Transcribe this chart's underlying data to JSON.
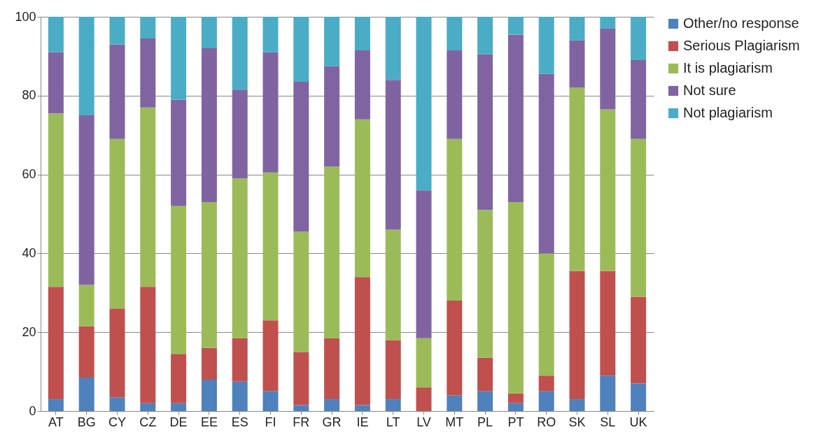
{
  "chart_data": {
    "type": "bar",
    "stacked": true,
    "categories": [
      "AT",
      "BG",
      "CY",
      "CZ",
      "DE",
      "EE",
      "ES",
      "FI",
      "FR",
      "GR",
      "IE",
      "LT",
      "LV",
      "MT",
      "PL",
      "PT",
      "RO",
      "SK",
      "SL",
      "UK"
    ],
    "series": [
      {
        "name": "Other/no response",
        "color": "#4f81bd",
        "values": [
          3,
          8.5,
          3.5,
          2,
          2,
          8,
          7.5,
          5,
          1.5,
          3,
          1.5,
          3,
          0,
          4,
          5,
          2,
          5,
          3,
          9,
          7
        ]
      },
      {
        "name": "Serious Plagiarism",
        "color": "#c0504d",
        "values": [
          28.5,
          13,
          22.5,
          29.5,
          12.5,
          8,
          11,
          18,
          13.5,
          15.5,
          32.5,
          15,
          6,
          24,
          8.5,
          2.5,
          4,
          32.5,
          26.5,
          22
        ]
      },
      {
        "name": "It is plagiarism",
        "color": "#9bbb59",
        "values": [
          44,
          10.5,
          43,
          45.5,
          37.5,
          37,
          40.5,
          37.5,
          30.5,
          43.5,
          40,
          28,
          12.5,
          41,
          37.5,
          48.5,
          31,
          46.5,
          41,
          40
        ]
      },
      {
        "name": "Not sure",
        "color": "#8064a2",
        "values": [
          15.5,
          43,
          24,
          17.5,
          27,
          39,
          22.5,
          30.5,
          38,
          25.5,
          17.5,
          38,
          37.5,
          22.5,
          39.5,
          42.5,
          45.5,
          12,
          20.5,
          20
        ]
      },
      {
        "name": "Not plagiarism",
        "color": "#4bacc6",
        "values": [
          9,
          25,
          7,
          5.5,
          21,
          8,
          18.5,
          9,
          16.5,
          12.5,
          8.5,
          16,
          44,
          8.5,
          9.5,
          4.5,
          14.5,
          6,
          3,
          11
        ]
      }
    ],
    "ylim": [
      0,
      100
    ],
    "yticks": [
      0,
      20,
      40,
      60,
      80,
      100
    ],
    "grid": "y",
    "legend": "right"
  }
}
